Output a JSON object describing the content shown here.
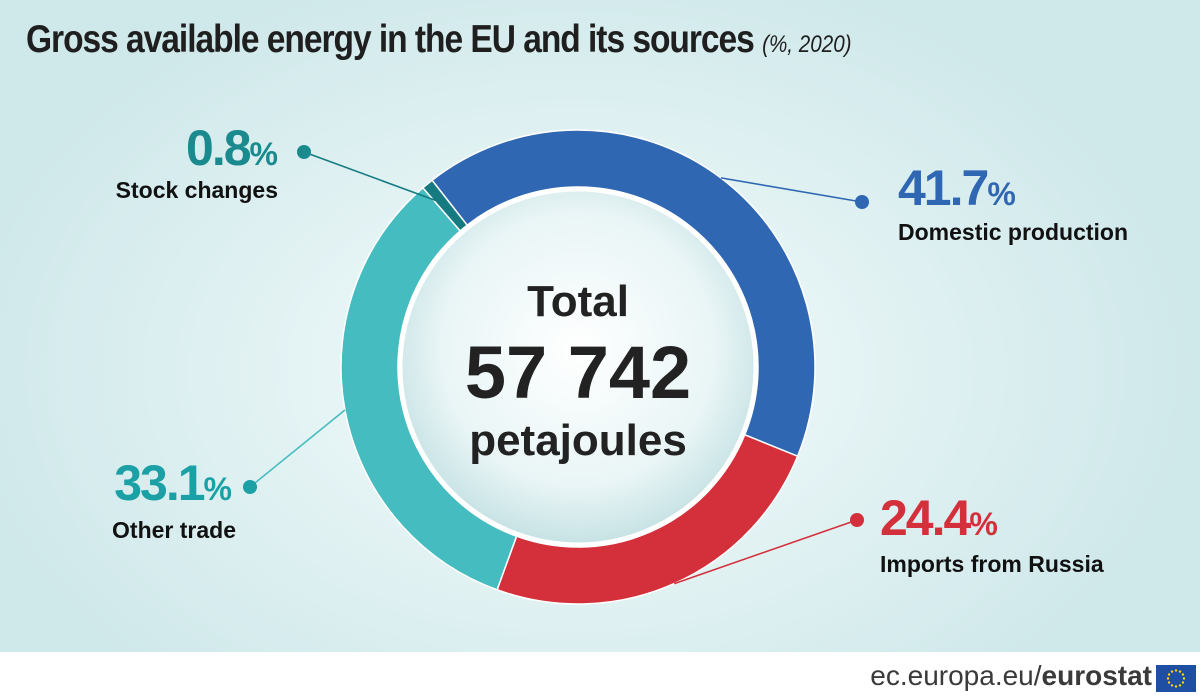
{
  "title": "Gross available energy in the EU and its sources",
  "subtitle": "(%, 2020)",
  "center": {
    "line1": "Total",
    "line2": "57 742",
    "line3": "petajoules"
  },
  "footer": {
    "site_prefix": "ec.europa.eu/",
    "site_brand": "eurostat",
    "flag_icon": "eu-flag-icon"
  },
  "chart_data": {
    "type": "donut",
    "unit": "%",
    "total": {
      "value": 57742,
      "unit": "petajoules"
    },
    "slices": [
      {
        "label": "Domestic production",
        "value": 41.7,
        "display": "41.7",
        "color": "#2f67b2"
      },
      {
        "label": "Imports from Russia",
        "value": 24.4,
        "display": "24.4",
        "color": "#d4303b"
      },
      {
        "label": "Other trade",
        "value": 33.1,
        "display": "33.1",
        "color": "#45bcbf"
      },
      {
        "label": "Stock changes",
        "value": 0.8,
        "display": "0.8",
        "color": "#157b80"
      }
    ],
    "label_colors": [
      "#2f67b2",
      "#d4303b",
      "#1aa0a5",
      "#1a8a8f"
    ]
  }
}
